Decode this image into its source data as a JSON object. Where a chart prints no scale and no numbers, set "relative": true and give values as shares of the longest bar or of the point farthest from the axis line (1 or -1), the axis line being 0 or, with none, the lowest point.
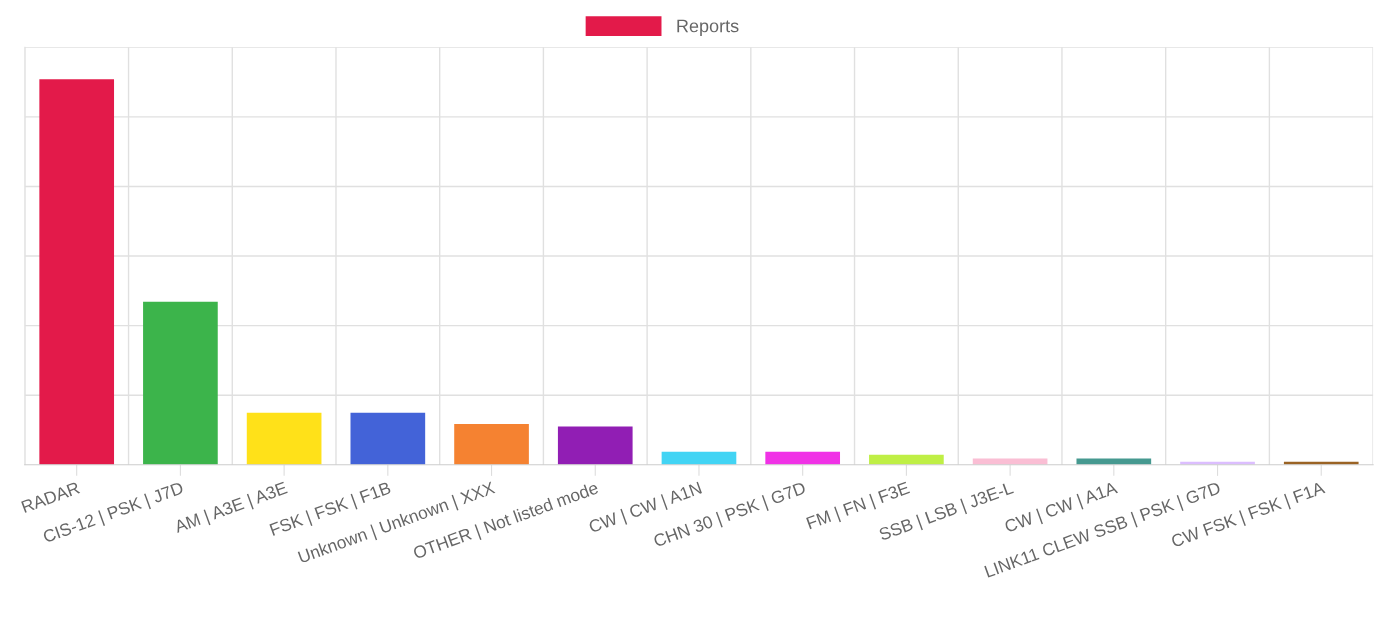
{
  "chart_data": {
    "type": "bar",
    "relative": true,
    "grid": true,
    "legend": "top",
    "categories": [
      "RADAR",
      "CIS-12 | PSK | J7D",
      "AM | A3E | A3E",
      "FSK | FSK | F1B",
      "Unknown | Unknown | XXX",
      "OTHER | Not listed mode",
      "CW | CW | A1N",
      "CHN 30 | PSK | G7D",
      "FM | FN | F3E",
      "SSB | LSB | J3E-L",
      "CW | CW | A1A",
      "LINK11 CLEW SSB | PSK | G7D",
      "CW FSK | FSK | F1A"
    ],
    "series": [
      {
        "name": "Reports",
        "color": "#e31a4a",
        "colors": [
          "#e31a4a",
          "#3cb44b",
          "#ffe119",
          "#4363d8",
          "#f58231",
          "#911eb4",
          "#42d4f4",
          "#f032e6",
          "#bfef45",
          "#fabed4",
          "#469990",
          "#dcbeff",
          "#9a6324"
        ],
        "values": [
          1,
          0.423,
          0.135,
          0.135,
          0.106,
          0.099,
          0.034,
          0.034,
          0.026,
          0.016,
          0.016,
          0.008,
          0.008
        ]
      }
    ]
  }
}
